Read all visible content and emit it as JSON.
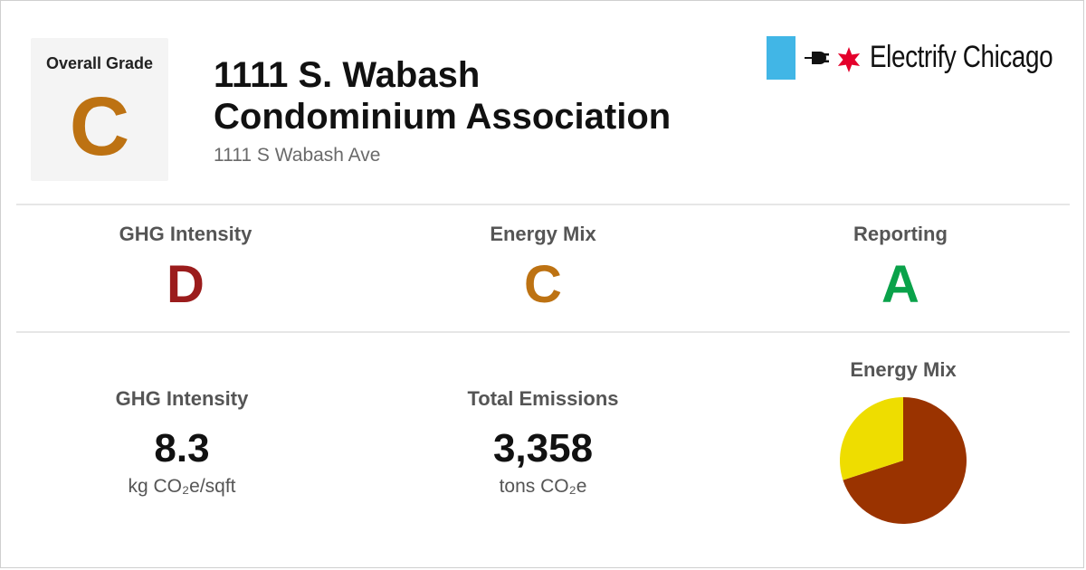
{
  "overall": {
    "label": "Overall Grade",
    "grade": "C",
    "color": "#bd7212"
  },
  "building": {
    "name": "1111 S. Wabash Condominium Association",
    "address": "1111 S Wabash Ave"
  },
  "logo": {
    "brand": "Electrify Chicago",
    "icons": [
      "blue-block",
      "plug-icon",
      "star-icon"
    ],
    "accent": "#41b6e6",
    "star_color": "#e4002b"
  },
  "grades": [
    {
      "label": "GHG Intensity",
      "grade": "D",
      "color": "#9b1c1c"
    },
    {
      "label": "Energy Mix",
      "grade": "C",
      "color": "#bd7212"
    },
    {
      "label": "Reporting",
      "grade": "A",
      "color": "#0aa24a"
    }
  ],
  "stats": [
    {
      "label": "GHG Intensity",
      "value": "8.3",
      "unit": "kg CO₂e/sqft"
    },
    {
      "label": "Total Emissions",
      "value": "3,358",
      "unit": "tons CO₂e"
    }
  ],
  "energy_mix": {
    "label": "Energy Mix",
    "chart_data": {
      "type": "pie",
      "slices": [
        {
          "value": 0.7,
          "color": "#9a3300"
        },
        {
          "value": 0.3,
          "color": "#eedd00"
        }
      ]
    }
  }
}
